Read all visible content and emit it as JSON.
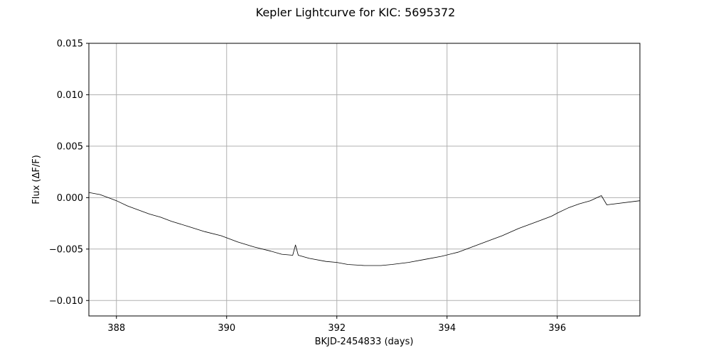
{
  "chart_data": {
    "type": "line",
    "title": "Kepler Lightcurve for KIC: 5695372",
    "xlabel": "BKJD-2454833 (days)",
    "ylabel": "Flux (ΔF/F)",
    "xlim": [
      387.5,
      397.5
    ],
    "ylim": [
      -0.0115,
      0.015
    ],
    "xticks": [
      388,
      390,
      392,
      394,
      396
    ],
    "xtick_labels": [
      "388",
      "390",
      "392",
      "394",
      "396"
    ],
    "yticks": [
      -0.01,
      -0.005,
      0.0,
      0.005,
      0.01,
      0.015
    ],
    "ytick_labels": [
      "−0.010",
      "−0.005",
      "0.000",
      "0.005",
      "0.010",
      "0.015"
    ],
    "grid": true,
    "line_color": "#000000",
    "grid_color": "#b0b0b0",
    "series": [
      {
        "x": [
          387.5,
          387.6,
          387.7,
          387.8,
          387.9,
          388.0,
          388.2,
          388.4,
          388.6,
          388.8,
          389.0,
          389.3,
          389.6,
          389.9,
          390.2,
          390.5,
          390.8,
          391.0,
          391.2,
          391.25,
          391.3,
          391.5,
          391.8,
          392.0,
          392.2,
          392.5,
          392.8,
          393.0,
          393.3,
          393.6,
          393.9,
          394.2,
          394.5,
          394.8,
          395.0,
          395.3,
          395.6,
          395.9,
          396.0,
          396.2,
          396.4,
          396.6,
          396.8,
          396.9,
          397.5
        ],
        "y": [
          0.0005,
          0.0004,
          0.0003,
          0.0001,
          -0.0001,
          -0.0003,
          -0.0008,
          -0.0012,
          -0.0016,
          -0.0019,
          -0.0023,
          -0.0028,
          -0.0033,
          -0.0037,
          -0.0043,
          -0.0048,
          -0.0052,
          -0.0055,
          -0.0056,
          -0.0046,
          -0.0056,
          -0.0059,
          -0.0062,
          -0.0063,
          -0.0065,
          -0.0066,
          -0.0066,
          -0.0065,
          -0.0063,
          -0.006,
          -0.0057,
          -0.0053,
          -0.0047,
          -0.0041,
          -0.0037,
          -0.003,
          -0.0024,
          -0.0018,
          -0.0015,
          -0.001,
          -0.0006,
          -0.0003,
          0.0002,
          -0.0007,
          -0.0003
        ]
      }
    ]
  }
}
